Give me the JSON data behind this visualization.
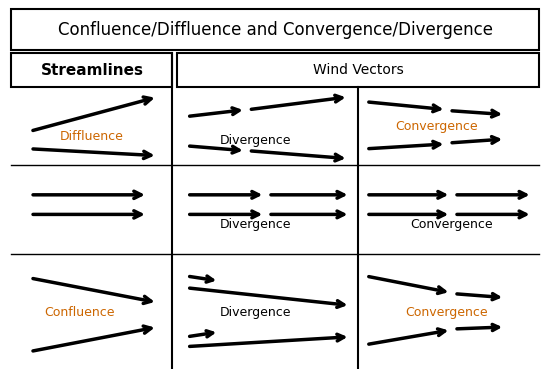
{
  "title": "Confluence/Diffluence and Convergence/Divergence",
  "bg_color": "#ffffff",
  "text_color": "#000000",
  "orange_color": "#cc6600",
  "figsize": [
    5.5,
    3.73
  ],
  "dpi": 100,
  "title_fontsize": 12,
  "label_fontsize": 9,
  "header_fontsize": 10,
  "streamlines_fontsize": 11
}
